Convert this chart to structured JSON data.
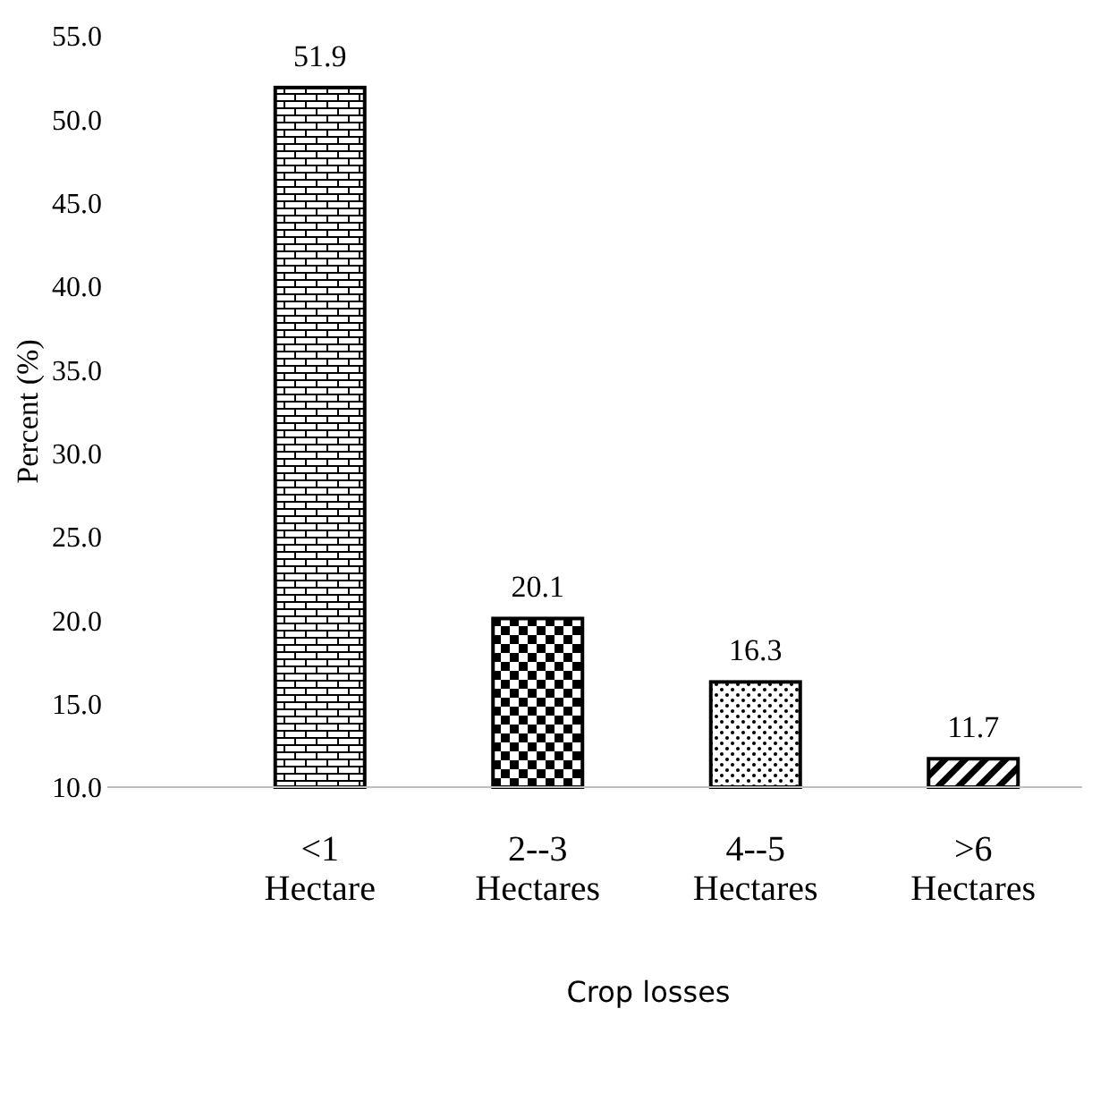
{
  "chart_data": {
    "type": "bar",
    "xlabel": "Crop losses",
    "ylabel": "Percent (%)",
    "categories": [
      "<1 Hectare",
      "2--3 Hectares",
      "4--5 Hectares",
      ">6 Hectares"
    ],
    "values": [
      51.9,
      20.1,
      16.3,
      11.7
    ],
    "color": "#000000",
    "ylim": [
      10,
      55
    ],
    "yticks": [
      {
        "value": 10,
        "label": "10.0"
      },
      {
        "value": 15,
        "label": "15.0"
      },
      {
        "value": 20,
        "label": "20.0"
      },
      {
        "value": 25,
        "label": "25.0"
      },
      {
        "value": 30,
        "label": "30.0"
      },
      {
        "value": 35,
        "label": "35.0"
      },
      {
        "value": 40,
        "label": "40.0"
      },
      {
        "value": 45,
        "label": "45.0"
      },
      {
        "value": 50,
        "label": "50.0"
      },
      {
        "value": 55,
        "label": "55.0"
      }
    ],
    "data_labels": true,
    "grid": false
  }
}
